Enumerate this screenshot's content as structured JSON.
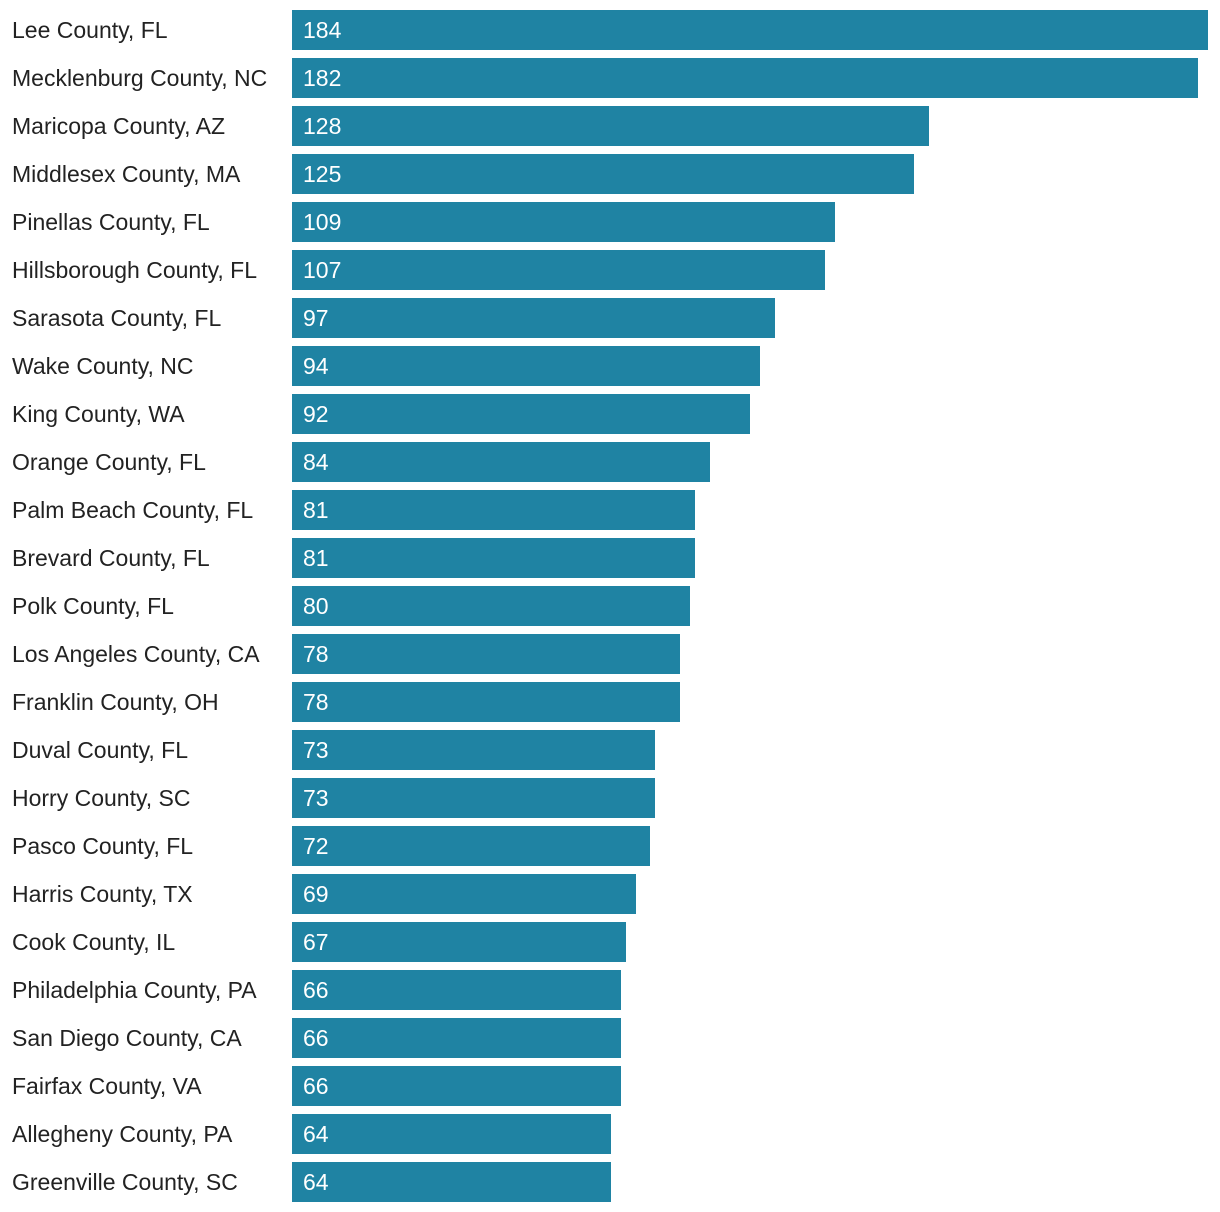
{
  "colors": {
    "bar": "#1f83a3",
    "bar_label": "#ffffff",
    "category_label": "#222222",
    "background": "#ffffff"
  },
  "chart_data": {
    "type": "bar",
    "orientation": "horizontal",
    "title": "",
    "xlabel": "",
    "ylabel": "",
    "grid": false,
    "xlim": [
      0,
      184
    ],
    "categories": [
      "Lee County, FL",
      "Mecklenburg County, NC",
      "Maricopa County, AZ",
      "Middlesex County, MA",
      "Pinellas County, FL",
      "Hillsborough County, FL",
      "Sarasota County, FL",
      "Wake County, NC",
      "King County, WA",
      "Orange County, FL",
      "Palm Beach County, FL",
      "Brevard County, FL",
      "Polk County, FL",
      "Los Angeles County, CA",
      "Franklin County, OH",
      "Duval County, FL",
      "Horry County, SC",
      "Pasco County, FL",
      "Harris County, TX",
      "Cook County, IL",
      "Philadelphia County, PA",
      "San Diego County, CA",
      "Fairfax County, VA",
      "Allegheny County, PA",
      "Greenville County, SC"
    ],
    "values": [
      184,
      182,
      128,
      125,
      109,
      107,
      97,
      94,
      92,
      84,
      81,
      81,
      80,
      78,
      78,
      73,
      73,
      72,
      69,
      67,
      66,
      66,
      66,
      64,
      64
    ],
    "data_labels": [
      "184",
      "182",
      "128",
      "125",
      "109",
      "107",
      "97",
      "94",
      "92",
      "84",
      "81",
      "81",
      "80",
      "78",
      "78",
      "73",
      "73",
      "72",
      "69",
      "67",
      "66",
      "66",
      "66",
      "64",
      "64"
    ]
  }
}
